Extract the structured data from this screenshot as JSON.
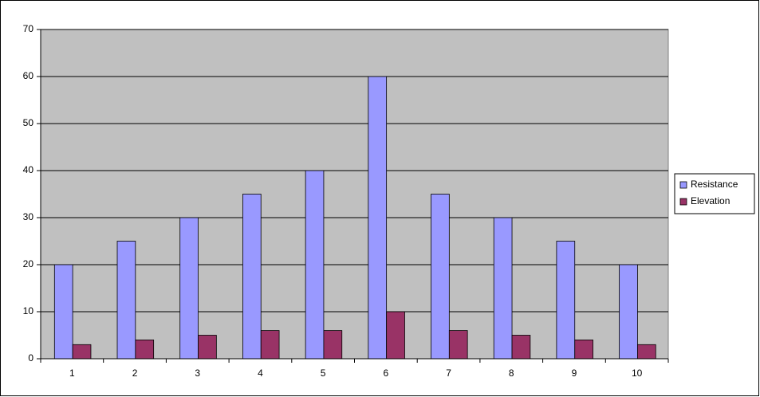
{
  "chart_data": {
    "type": "bar",
    "categories": [
      "1",
      "2",
      "3",
      "4",
      "5",
      "6",
      "7",
      "8",
      "9",
      "10"
    ],
    "series": [
      {
        "name": "Resistance",
        "color": "#9999ff",
        "values": [
          20,
          25,
          30,
          35,
          40,
          60,
          35,
          30,
          25,
          20
        ]
      },
      {
        "name": "Elevation",
        "color": "#993366",
        "values": [
          3,
          4,
          5,
          6,
          6,
          10,
          6,
          5,
          4,
          3
        ]
      }
    ],
    "ylim": [
      0,
      70
    ],
    "yticks": [
      0,
      10,
      20,
      30,
      40,
      50,
      60,
      70
    ],
    "grid": true,
    "legend": "right"
  }
}
